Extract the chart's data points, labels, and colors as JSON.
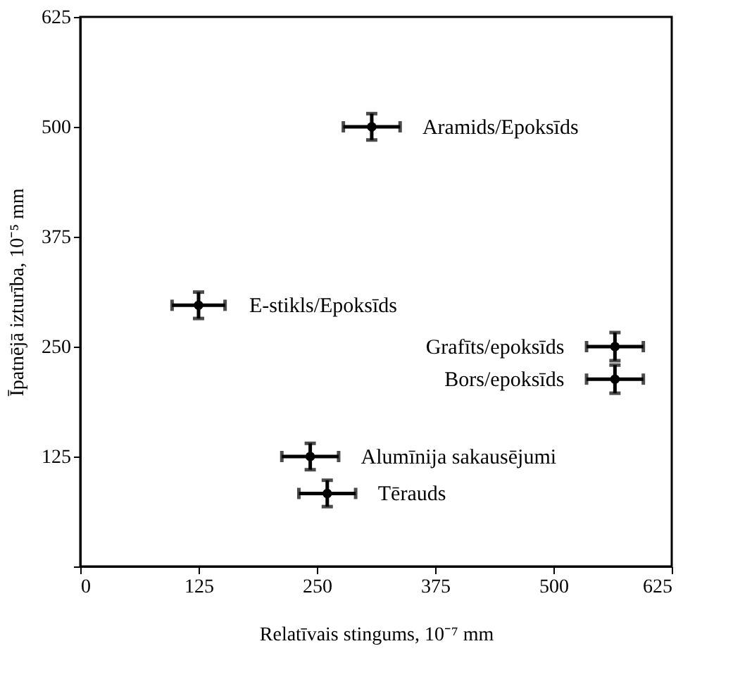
{
  "chart_data": {
    "type": "scatter",
    "xlabel": "Relatīvais stingums, 10⁻⁷ mm",
    "ylabel": "Īpatnējā izturība, 10⁻⁵ mm",
    "x": [
      308,
      125,
      565,
      565,
      243,
      261
    ],
    "values": [
      500,
      297,
      250,
      213,
      125,
      83
    ],
    "xerrors": [
      30,
      28,
      30,
      30,
      30,
      30
    ],
    "errors": [
      15,
      15,
      16,
      16,
      15,
      15
    ],
    "color": "#000000",
    "marker": "circle",
    "grid": false,
    "xlim": [
      0,
      625
    ],
    "xticks": [
      0,
      125,
      250,
      375,
      500,
      625
    ],
    "ylim": [
      0,
      625
    ],
    "yticks": [
      {
        "value": 0,
        "label": null
      },
      125,
      250,
      375,
      500,
      625
    ],
    "annotations": [
      {
        "text": "Aramids/Epoksīds",
        "x": 308,
        "y": 500
      },
      {
        "text": "E-stikls/Epoksīds",
        "x": 125,
        "y": 297
      },
      {
        "text": "Grafīts/epoksīds",
        "x": 565,
        "y": 250
      },
      {
        "text": "Bors/epoksīds",
        "x": 565,
        "y": 213
      },
      {
        "text": "Alumīnija sakausējumi",
        "x": 243,
        "y": 125
      },
      {
        "text": "Tērauds",
        "x": 261,
        "y": 83
      }
    ]
  }
}
